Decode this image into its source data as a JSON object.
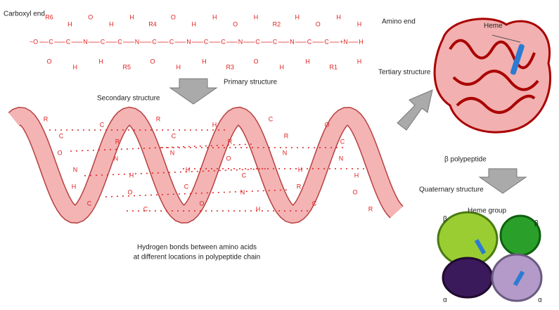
{
  "labels": {
    "carboxyl": "Carboxyl end",
    "amino": "Amino end",
    "primary": "Primary structure",
    "secondary": "Secondary structure",
    "hbonds": [
      "Hydrogen bonds between amino acids",
      "at different locations in polypeptide chain"
    ],
    "tertiary": "Tertiary structure",
    "heme": "Heme",
    "beta_poly": "β polypeptide",
    "quaternary": "Quaternary structure",
    "heme_group": "Heme group",
    "subunits": [
      "β",
      "β",
      "α",
      "α"
    ]
  },
  "primary": {
    "top": [
      "R6",
      "H",
      "O",
      "H",
      "H",
      "R4",
      "O",
      "H",
      "H",
      "O",
      "H",
      "R2",
      "H",
      "O",
      "H",
      "H"
    ],
    "chain": [
      "−O",
      "C",
      "C",
      "N",
      "C",
      "C",
      "N",
      "C",
      "C",
      "N",
      "C",
      "C",
      "N",
      "C",
      "C",
      "N",
      "C",
      "C",
      "+N",
      "H"
    ],
    "bottom": [
      "O",
      "H",
      "H",
      "R5",
      "O",
      "H",
      "H",
      "R3",
      "O",
      "H",
      "H",
      "R1",
      "H"
    ]
  },
  "helix": [
    "R",
    "C",
    "O",
    "N",
    "H",
    "C",
    "C",
    "R",
    "N",
    "H",
    "O",
    "C",
    "R",
    "C",
    "N",
    "H",
    "C",
    "O",
    "H",
    "R",
    "O",
    "C",
    "N",
    "H",
    "C",
    "R",
    "N",
    "H",
    "R",
    "C",
    "O",
    "C",
    "N",
    "H",
    "O",
    "R"
  ]
}
